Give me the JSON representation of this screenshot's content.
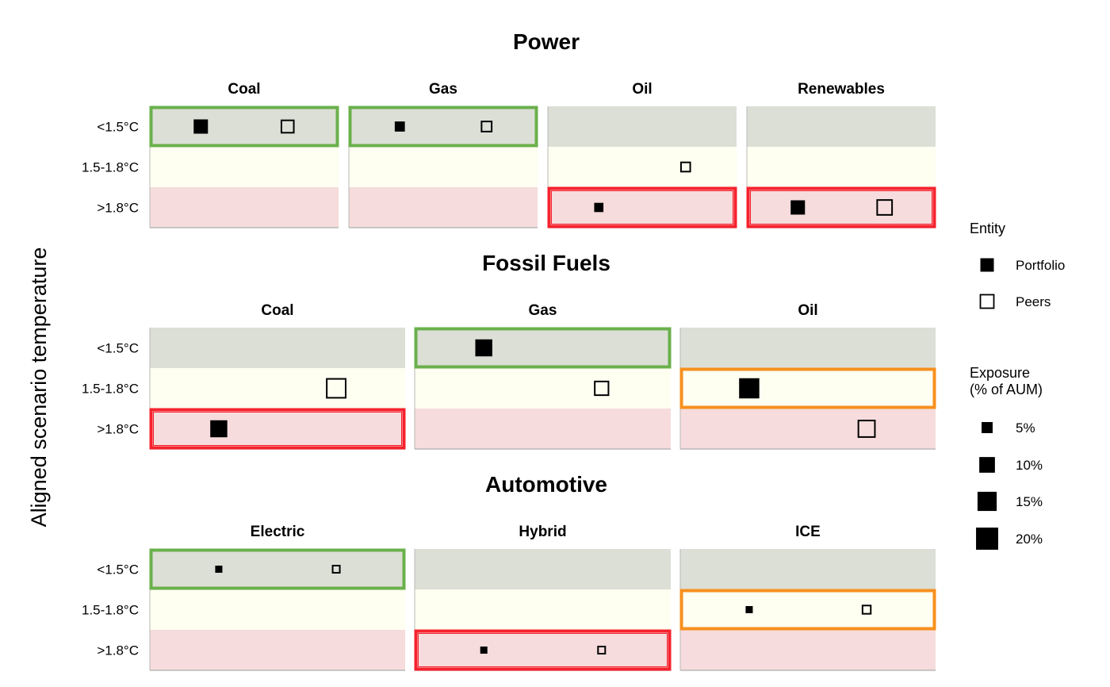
{
  "chart_data": {
    "type": "scatter",
    "ylabel": "Aligned scenario temperature",
    "x_description": "",
    "row_labels": [
      "<1.5°C",
      "1.5-1.8°C",
      ">1.8°C"
    ],
    "band_colors": {
      "<1.5°C": "#dcdfd6",
      "1.5-1.8°C": "#fefef1",
      ">1.8°C": "#f6dcdc"
    },
    "highlight_colors": {
      "green": "#6ab04c",
      "orange": "#f7901e",
      "red": "#f5222d"
    },
    "sectors": [
      {
        "name": "Power",
        "panels": [
          {
            "tech": "Coal",
            "highlight": {
              "row": "<1.5°C",
              "color": "green"
            },
            "points": [
              {
                "entity": "Portfolio",
                "row": "<1.5°C",
                "x": 0.27,
                "exposure": 12
              },
              {
                "entity": "Peers",
                "row": "<1.5°C",
                "x": 0.73,
                "exposure": 9
              }
            ]
          },
          {
            "tech": "Gas",
            "highlight": {
              "row": "<1.5°C",
              "color": "green"
            },
            "points": [
              {
                "entity": "Portfolio",
                "row": "<1.5°C",
                "x": 0.27,
                "exposure": 6
              },
              {
                "entity": "Peers",
                "row": "<1.5°C",
                "x": 0.73,
                "exposure": 6
              }
            ]
          },
          {
            "tech": "Oil",
            "highlight": {
              "row": ">1.8°C",
              "color": "red"
            },
            "points": [
              {
                "entity": "Portfolio",
                "row": ">1.8°C",
                "x": 0.27,
                "exposure": 5
              },
              {
                "entity": "Peers",
                "row": "1.5-1.8°C",
                "x": 0.73,
                "exposure": 5
              }
            ]
          },
          {
            "tech": "Renewables",
            "highlight": {
              "row": ">1.8°C",
              "color": "red"
            },
            "points": [
              {
                "entity": "Portfolio",
                "row": ">1.8°C",
                "x": 0.27,
                "exposure": 12
              },
              {
                "entity": "Peers",
                "row": ">1.8°C",
                "x": 0.73,
                "exposure": 13
              }
            ]
          }
        ]
      },
      {
        "name": "Fossil Fuels",
        "panels": [
          {
            "tech": "Coal",
            "highlight": {
              "row": ">1.8°C",
              "color": "red"
            },
            "points": [
              {
                "entity": "Portfolio",
                "row": ">1.8°C",
                "x": 0.27,
                "exposure": 17
              },
              {
                "entity": "Peers",
                "row": "1.5-1.8°C",
                "x": 0.73,
                "exposure": 21
              }
            ]
          },
          {
            "tech": "Gas",
            "highlight": {
              "row": "<1.5°C",
              "color": "green"
            },
            "points": [
              {
                "entity": "Portfolio",
                "row": "<1.5°C",
                "x": 0.27,
                "exposure": 17
              },
              {
                "entity": "Peers",
                "row": "1.5-1.8°C",
                "x": 0.73,
                "exposure": 11
              }
            ]
          },
          {
            "tech": "Oil",
            "highlight": {
              "row": "1.5-1.8°C",
              "color": "orange"
            },
            "points": [
              {
                "entity": "Portfolio",
                "row": "1.5-1.8°C",
                "x": 0.27,
                "exposure": 24
              },
              {
                "entity": "Peers",
                "row": ">1.8°C",
                "x": 0.73,
                "exposure": 16
              }
            ]
          }
        ]
      },
      {
        "name": "Automotive",
        "panels": [
          {
            "tech": "Electric",
            "highlight": {
              "row": "<1.5°C",
              "color": "green"
            },
            "points": [
              {
                "entity": "Portfolio",
                "row": "<1.5°C",
                "x": 0.27,
                "exposure": 3
              },
              {
                "entity": "Peers",
                "row": "<1.5°C",
                "x": 0.73,
                "exposure": 3
              }
            ]
          },
          {
            "tech": "Hybrid",
            "highlight": {
              "row": ">1.8°C",
              "color": "red"
            },
            "points": [
              {
                "entity": "Portfolio",
                "row": ">1.8°C",
                "x": 0.27,
                "exposure": 3
              },
              {
                "entity": "Peers",
                "row": ">1.8°C",
                "x": 0.73,
                "exposure": 3
              }
            ]
          },
          {
            "tech": "ICE",
            "highlight": {
              "row": "1.5-1.8°C",
              "color": "orange"
            },
            "points": [
              {
                "entity": "Portfolio",
                "row": "1.5-1.8°C",
                "x": 0.27,
                "exposure": 3
              },
              {
                "entity": "Peers",
                "row": "1.5-1.8°C",
                "x": 0.73,
                "exposure": 4
              }
            ]
          }
        ]
      }
    ],
    "legend": {
      "entity_title": "Entity",
      "entities": [
        {
          "label": "Portfolio",
          "style": "filled"
        },
        {
          "label": "Peers",
          "style": "hollow"
        }
      ],
      "exposure_title": [
        "Exposure",
        "(% of AUM)"
      ],
      "exposure_levels": [
        {
          "label": "5%",
          "value": 5
        },
        {
          "label": "10%",
          "value": 10
        },
        {
          "label": "15%",
          "value": 15
        },
        {
          "label": "20%",
          "value": 20
        }
      ]
    }
  }
}
